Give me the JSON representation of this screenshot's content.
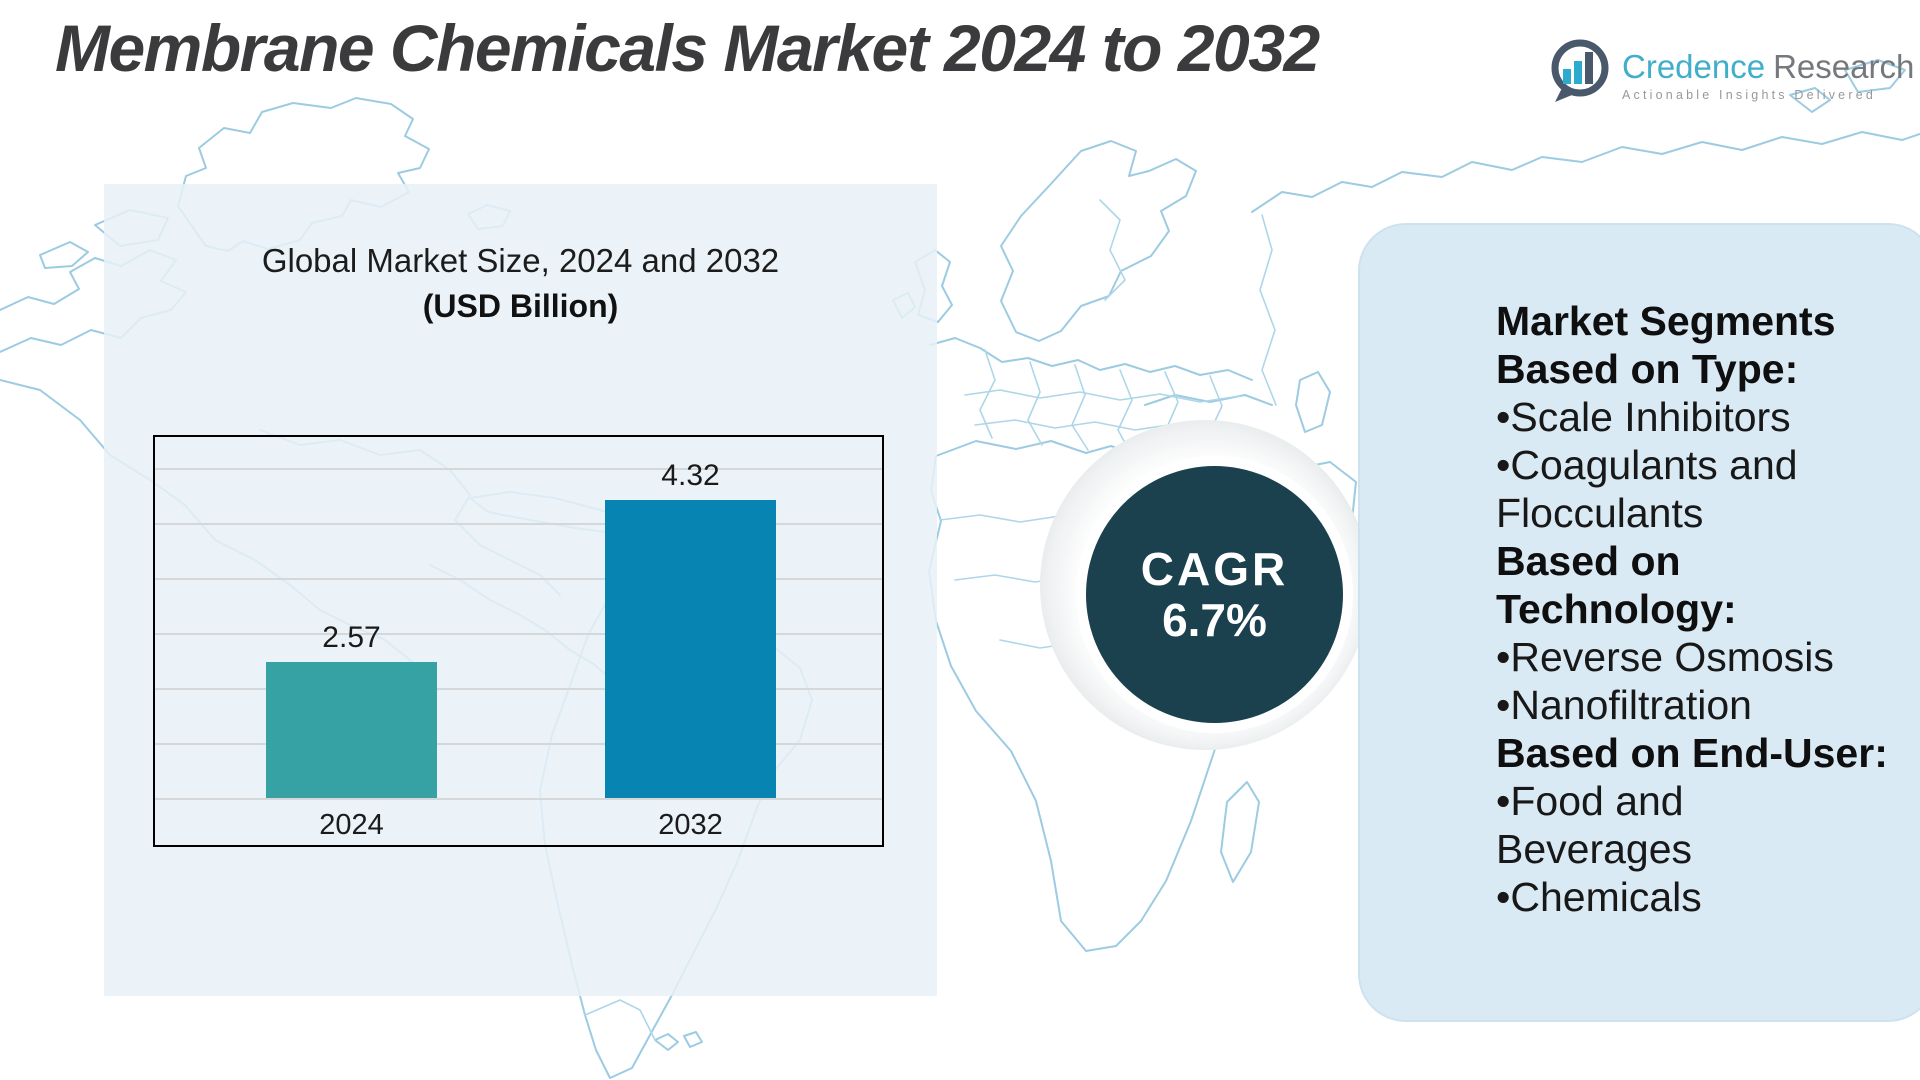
{
  "page": {
    "title": "Membrane Chemicals Market 2024 to 2032"
  },
  "logo": {
    "icon": "bar-chart-speech-bubble-icon",
    "brand_primary": "Credence",
    "brand_secondary": "Research",
    "tagline": "Actionable Insights Delivered"
  },
  "chart_data": {
    "type": "bar",
    "title": "Global Market Size, 2024 and 2032",
    "subtitle": "(USD Billion)",
    "categories": [
      "2024",
      "2032"
    ],
    "values": [
      2.57,
      4.32
    ],
    "unit": "USD Billion",
    "ylim": [
      1.1,
      5
    ],
    "grid": "horizontal-gridlines-on",
    "legend": "none",
    "bar_colors": [
      "#36a2a3",
      "#0884b3"
    ]
  },
  "cagr": {
    "label": "CAGR",
    "value": "6.7%"
  },
  "segments": {
    "lines": [
      {
        "text": "Market Segments",
        "bold": true
      },
      {
        "text": "Based on Type:",
        "bold": true
      },
      {
        "text": "•Scale Inhibitors",
        "bold": false
      },
      {
        "text": "•Coagulants and",
        "bold": false
      },
      {
        "text": "Flocculants",
        "bold": false
      },
      {
        "text": "Based on",
        "bold": true
      },
      {
        "text": "Technology:",
        "bold": true
      },
      {
        "text": "•Reverse Osmosis",
        "bold": false
      },
      {
        "text": "•Nanofiltration",
        "bold": false
      },
      {
        "text": "Based on End-User:",
        "bold": true
      },
      {
        "text": "•Food and",
        "bold": false
      },
      {
        "text": "Beverages",
        "bold": false
      },
      {
        "text": "•Chemicals",
        "bold": false
      }
    ]
  },
  "colors": {
    "bar_2024": "#36a2a3",
    "bar_2032": "#0884b3",
    "cagr_circle": "#1b404e",
    "segments_panel_bg": "#d9eaf4",
    "chart_panel_bg": "#e7f1f7",
    "map_lines": "#9ccbe2",
    "title_text": "#3b3b3d",
    "logo_blue": "#41aecb",
    "logo_gray": "#75787d"
  }
}
